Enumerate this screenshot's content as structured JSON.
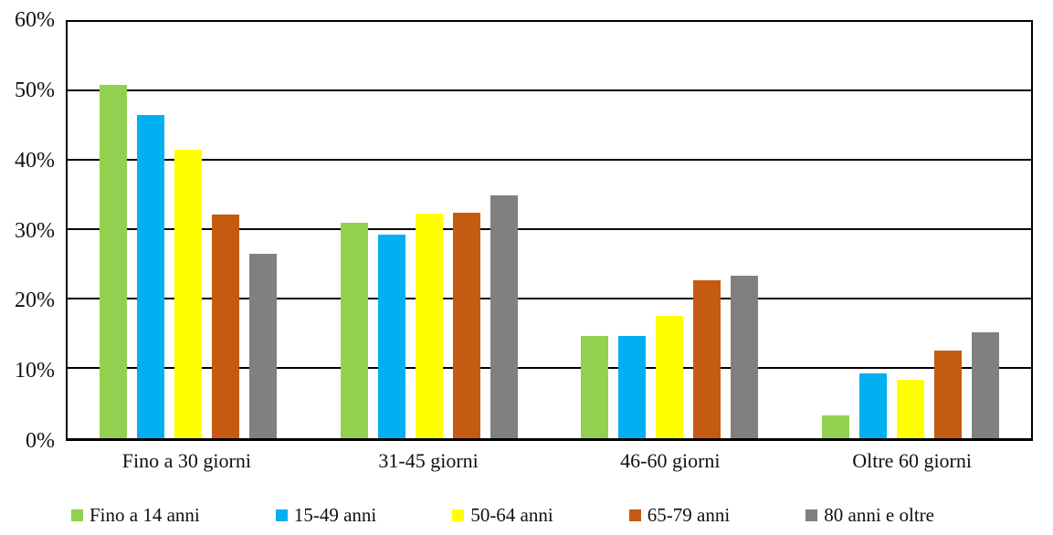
{
  "chart_data": {
    "type": "bar",
    "title": "",
    "categories": [
      "Fino a 30 giorni",
      "31-45 giorni",
      "46-60 giorni",
      "Oltre 60 giorni"
    ],
    "series": [
      {
        "name": "Fino a 14 anni",
        "color": "#92D050",
        "values": [
          50.9,
          31.1,
          14.7,
          3.3
        ]
      },
      {
        "name": "15-49 anni",
        "color": "#00B0F0",
        "values": [
          46.6,
          29.3,
          14.8,
          9.4
        ]
      },
      {
        "name": "50-64 anni",
        "color": "#FFFF00",
        "values": [
          41.6,
          32.4,
          17.6,
          8.4
        ]
      },
      {
        "name": "65-79 anni",
        "color": "#C55A11",
        "values": [
          32.2,
          32.5,
          22.7,
          12.6
        ]
      },
      {
        "name": "80 anni e oltre",
        "color": "#808080",
        "values": [
          26.6,
          35.0,
          23.4,
          15.2
        ]
      }
    ],
    "xlabel": "",
    "ylabel": "",
    "ylim": [
      0,
      60
    ],
    "ytick_values": [
      0,
      10,
      20,
      30,
      40,
      50,
      60
    ],
    "ytick_labels": [
      "0%",
      "10%",
      "20%",
      "30%",
      "40%",
      "50%",
      "60%"
    ],
    "grid": "horizontal",
    "gridline_color": "#000000",
    "legend_position": "bottom"
  }
}
